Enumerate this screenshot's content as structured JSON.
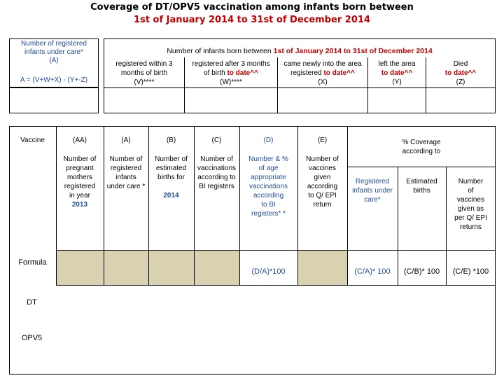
{
  "title": {
    "line1": "Coverage of DT/OPV5 vaccination among infants born between",
    "line2": "1st of January  2014 to 31st of December 2014"
  },
  "left_box": {
    "line1": "Number of registered",
    "line2": "infants under care*",
    "line3": "(A)",
    "formula": "A = (V+W+X) - (Y+-Z)"
  },
  "top_box": {
    "heading_prefix": "Number of infants born between",
    "heading_red": "1st of January 2014 to 31st of December 2014",
    "cols": [
      {
        "l1": "registered within 3",
        "l2": "months of birth",
        "l3": "(V)****"
      },
      {
        "l1": "registered after 3 months",
        "l2_black": "of birth",
        "l2_red": "to date^^",
        "l3": "(W)****"
      },
      {
        "l1": "came newly into the area",
        "l2_black": "registered",
        "l2_red": "to date^^",
        "l3": "(X)"
      },
      {
        "l1": "left the area",
        "l2_red": "to date^^",
        "l3": "(Y)"
      },
      {
        "l1": "Died",
        "l2_red": "to date^^",
        "l3": "(Z)"
      }
    ]
  },
  "main": {
    "vaccine": "Vaccine",
    "col_aa": {
      "code": "(AA)",
      "l1": "Number of",
      "l2": "pregnant",
      "l3": "mothers",
      "l4": "registered",
      "l5": "in year",
      "l6": "2013"
    },
    "col_a": {
      "code": "(A)",
      "l1": "Number of",
      "l2": "registered",
      "l3": "infants",
      "l4": "under care *"
    },
    "col_b": {
      "code": "(B)",
      "l1": "Number of",
      "l2": "estimated",
      "l3": "births for",
      "l4": "2014"
    },
    "col_c": {
      "code": "(C)",
      "l1": "Number of",
      "l2": "vaccinations",
      "l3": "according to",
      "l4": "BI registers"
    },
    "col_d": {
      "code": "(D)",
      "l1": "Number  & %",
      "l2": "of age",
      "l3": "appropriate",
      "l4": "vaccinations",
      "l5": "according",
      "l6": "to BI",
      "l7": "registers* *"
    },
    "col_e": {
      "code": "(E)",
      "l1": "Number of",
      "l2": "vaccines",
      "l3": "given",
      "l4": "according",
      "l5": "to Q/ EPI",
      "l6": "return"
    },
    "coverage": {
      "l1": "% Coverage",
      "l2": "according to"
    },
    "cov_registered": {
      "l1": "Registered",
      "l2": "infants under",
      "l3": "care*"
    },
    "cov_estimated": {
      "l1": "Estimated",
      "l2": "births"
    },
    "cov_qepi": {
      "l1": "Number",
      "l2": "of",
      "l3": "vaccines",
      "l4": "given as",
      "l5": "per Q/ EPI",
      "l6": "returns"
    },
    "formula_label": "Formula",
    "formulas": {
      "d": "(D/A)*100",
      "ca": "(C/A)* 100",
      "cb": "(C/B)* 100",
      "ce": "(C/E) *100"
    },
    "rows": [
      "DT",
      "OPV5"
    ]
  },
  "colors": {
    "red": "#c00000",
    "blue": "#1f4e9a",
    "shade": "#d8d2b0"
  }
}
